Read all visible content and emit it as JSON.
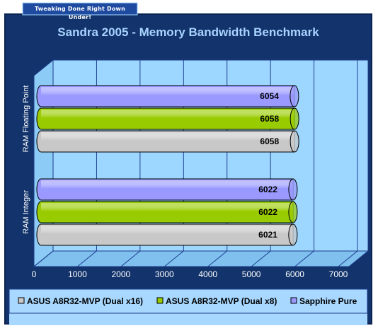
{
  "banner": {
    "tagline": "Tweaking Done Right Down Under!"
  },
  "colors": {
    "background": "#12336b",
    "plot_wall": "#9dd7ff",
    "grid": "#1d3d8c",
    "legend_bg": "#a8d8ff",
    "series": [
      "#c8c8c8",
      "#99cc00",
      "#9999ff"
    ]
  },
  "chart_data": {
    "type": "bar",
    "orientation": "horizontal",
    "title": "Sandra 2005 - Memory Bandwidth Benchmark",
    "categories": [
      "RAM Integer",
      "RAM Floating Point"
    ],
    "series": [
      {
        "name": "ASUS A8R32-MVP (Dual x16)",
        "values": [
          6021,
          6058
        ]
      },
      {
        "name": "ASUS A8R32-MVP (Dual x8)",
        "values": [
          6022,
          6058
        ]
      },
      {
        "name": "Sapphire Pure",
        "values": [
          6022,
          6054
        ]
      }
    ],
    "xlim": [
      0,
      7000
    ],
    "xticks": [
      0,
      1000,
      2000,
      3000,
      4000,
      5000,
      6000,
      7000
    ],
    "grid": true,
    "legend_position": "bottom"
  }
}
